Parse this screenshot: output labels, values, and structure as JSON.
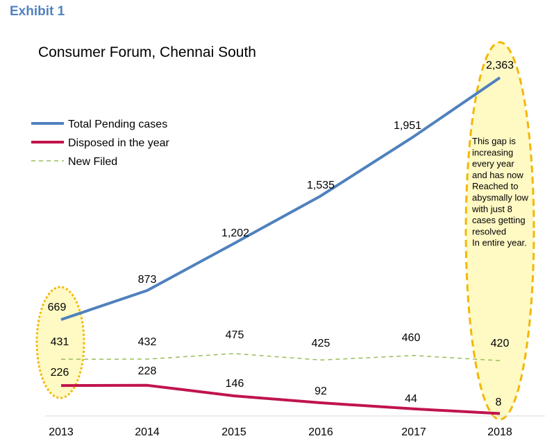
{
  "exhibit_label": "Exhibit 1",
  "chart_data": {
    "type": "line",
    "title": "Consumer Forum, Chennai South",
    "xlabel": "",
    "ylabel": "",
    "x": [
      "2013",
      "2014",
      "2015",
      "2016",
      "2017",
      "2018"
    ],
    "ylim": [
      0,
      2500
    ],
    "grid": false,
    "legend_position": "left",
    "series": [
      {
        "name": "Total Pending cases",
        "values": [
          669,
          873,
          1202,
          1535,
          1951,
          2363
        ],
        "labels": [
          "669",
          "873",
          "1,202",
          "1,535",
          "1,951",
          "2,363"
        ],
        "color": "#4f81bd",
        "style": "solid"
      },
      {
        "name": "Disposed in the year",
        "values": [
          226,
          228,
          146,
          92,
          44,
          8
        ],
        "labels": [
          "226",
          "228",
          "146",
          "92",
          "44",
          "8"
        ],
        "color": "#c0144c",
        "style": "solid"
      },
      {
        "name": "New Filed",
        "values": [
          431,
          432,
          475,
          425,
          460,
          420
        ],
        "labels": [
          "431",
          "432",
          "475",
          "425",
          "460",
          "420"
        ],
        "color": "#9bbb59",
        "style": "dashed"
      }
    ],
    "annotations": [
      {
        "text_lines": [
          "This gap is",
          "increasing",
          "every year",
          "and has now",
          "Reached to",
          "abysmally low",
          "with just 8",
          "cases getting",
          "resolved",
          "In entire year."
        ],
        "highlight_fill": "#fff9c4",
        "highlight_stroke": "#f2b705"
      }
    ],
    "highlights": [
      "2013",
      "2018"
    ]
  }
}
